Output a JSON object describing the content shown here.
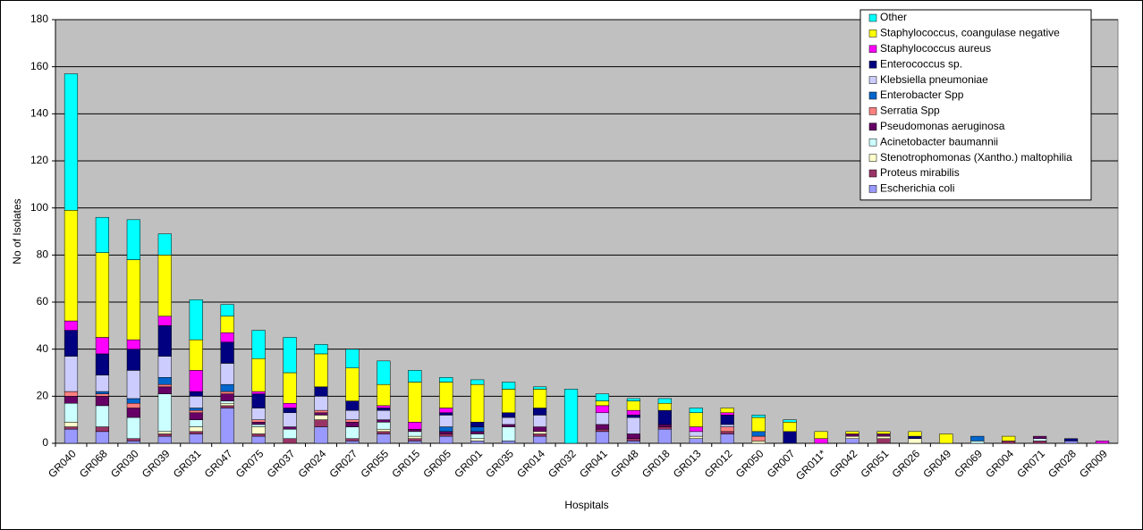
{
  "chart_data": {
    "type": "stacked_bar",
    "xlabel": "Hospitals",
    "ylabel": "No of Isolates",
    "categories": [
      "GR040",
      "GR068",
      "GR030",
      "GR039",
      "GR031",
      "GR047",
      "GR075",
      "GR037",
      "GR024",
      "GR027",
      "GR055",
      "GR015",
      "GR005",
      "GR001",
      "GR035",
      "GR014",
      "GR032",
      "GR041",
      "GR048",
      "GR018",
      "GR013",
      "GR012",
      "GR050",
      "GR007",
      "GR011*",
      "GR042",
      "GR051",
      "GR026",
      "GR049",
      "GR069",
      "GR004",
      "GR071",
      "GR028",
      "GR009"
    ],
    "series": [
      {
        "name": "Escherichia coli",
        "color": "#9999FF",
        "values": [
          6,
          5,
          1,
          3,
          4,
          15,
          3,
          0,
          7,
          1,
          4,
          1,
          3,
          1,
          1,
          3,
          0,
          5,
          1,
          6,
          2,
          4,
          0,
          0,
          0,
          2,
          0,
          0,
          0,
          0,
          0,
          0,
          1,
          0
        ]
      },
      {
        "name": "Proteus mirabilis",
        "color": "#993366",
        "values": [
          1,
          2,
          1,
          1,
          1,
          1,
          1,
          2,
          3,
          1,
          1,
          1,
          1,
          0,
          0,
          1,
          0,
          1,
          1,
          1,
          0,
          1,
          0,
          0,
          0,
          0,
          2,
          0,
          0,
          0,
          1,
          1,
          0,
          0
        ]
      },
      {
        "name": "Stenotrophomonas (Xantho.) maltophilia",
        "color": "#FFFFCC",
        "values": [
          2,
          0,
          0,
          1,
          2,
          1,
          3,
          0,
          2,
          0,
          1,
          1,
          0,
          1,
          0,
          1,
          0,
          0,
          0,
          0,
          1,
          0,
          1,
          0,
          0,
          1,
          1,
          2,
          0,
          0,
          0,
          0,
          0,
          0
        ]
      },
      {
        "name": "Acinetobacter baumannii",
        "color": "#CCFFFF",
        "values": [
          8,
          9,
          9,
          16,
          3,
          1,
          1,
          4,
          0,
          5,
          3,
          2,
          0,
          2,
          6,
          0,
          0,
          0,
          0,
          0,
          0,
          0,
          0,
          0,
          0,
          0,
          0,
          0,
          0,
          1,
          0,
          1,
          0,
          0
        ]
      },
      {
        "name": "Pseudomonas aeruginosa",
        "color": "#660066",
        "values": [
          3,
          4,
          4,
          3,
          3,
          3,
          1,
          1,
          1,
          2,
          1,
          1,
          1,
          1,
          1,
          2,
          0,
          2,
          2,
          1,
          0,
          0,
          0,
          0,
          0,
          1,
          1,
          0,
          0,
          0,
          0,
          1,
          0,
          0
        ]
      },
      {
        "name": "Serratia Spp",
        "color": "#FF8080",
        "values": [
          2,
          1,
          2,
          1,
          1,
          1,
          1,
          0,
          1,
          1,
          0,
          0,
          0,
          0,
          0,
          0,
          0,
          0,
          0,
          0,
          0,
          2,
          2,
          0,
          0,
          0,
          0,
          0,
          0,
          0,
          0,
          0,
          0,
          0
        ]
      },
      {
        "name": "Enterobacter Spp",
        "color": "#0066CC",
        "values": [
          0,
          1,
          2,
          3,
          1,
          3,
          0,
          0,
          0,
          0,
          0,
          0,
          2,
          2,
          0,
          0,
          0,
          0,
          0,
          0,
          0,
          0,
          2,
          0,
          0,
          0,
          0,
          0,
          0,
          2,
          0,
          0,
          0,
          0
        ]
      },
      {
        "name": "Klebsiella pneumoniae",
        "color": "#CCCCFF",
        "values": [
          15,
          7,
          12,
          9,
          5,
          9,
          5,
          6,
          6,
          4,
          4,
          0,
          5,
          0,
          3,
          5,
          0,
          5,
          7,
          0,
          2,
          1,
          0,
          0,
          0,
          0,
          0,
          0,
          0,
          0,
          0,
          0,
          0,
          0
        ]
      },
      {
        "name": "Enterococcus sp.",
        "color": "#000080",
        "values": [
          11,
          9,
          9,
          13,
          2,
          9,
          6,
          2,
          4,
          4,
          1,
          0,
          1,
          2,
          2,
          3,
          0,
          0,
          1,
          6,
          0,
          4,
          0,
          5,
          0,
          0,
          0,
          1,
          0,
          0,
          0,
          0,
          1,
          0
        ]
      },
      {
        "name": "Staphylococcus aureus",
        "color": "#FF00FF",
        "values": [
          4,
          7,
          4,
          4,
          9,
          4,
          1,
          2,
          0,
          0,
          1,
          3,
          2,
          0,
          0,
          0,
          0,
          3,
          2,
          0,
          2,
          1,
          0,
          0,
          2,
          0,
          0,
          0,
          0,
          0,
          0,
          0,
          0,
          1
        ]
      },
      {
        "name": "Staphylococcus, coangulase negative",
        "color": "#FFFF00",
        "values": [
          47,
          36,
          34,
          26,
          13,
          7,
          14,
          13,
          14,
          14,
          9,
          17,
          11,
          16,
          10,
          8,
          0,
          2,
          4,
          3,
          6,
          2,
          6,
          4,
          3,
          1,
          1,
          2,
          4,
          0,
          2,
          0,
          0,
          0
        ]
      },
      {
        "name": "Other",
        "color": "#00FFFF",
        "values": [
          58,
          15,
          17,
          9,
          17,
          5,
          12,
          15,
          4,
          8,
          10,
          5,
          2,
          2,
          3,
          1,
          23,
          3,
          1,
          2,
          2,
          0,
          1,
          1,
          0,
          0,
          0,
          0,
          0,
          0,
          0,
          0,
          0,
          0
        ]
      }
    ],
    "ylim": [
      0,
      180
    ],
    "yticks": [
      0,
      20,
      40,
      60,
      80,
      100,
      120,
      140,
      160,
      180
    ],
    "grid": true,
    "plot_background": "#C0C0C0",
    "legend_position": "top-right"
  }
}
